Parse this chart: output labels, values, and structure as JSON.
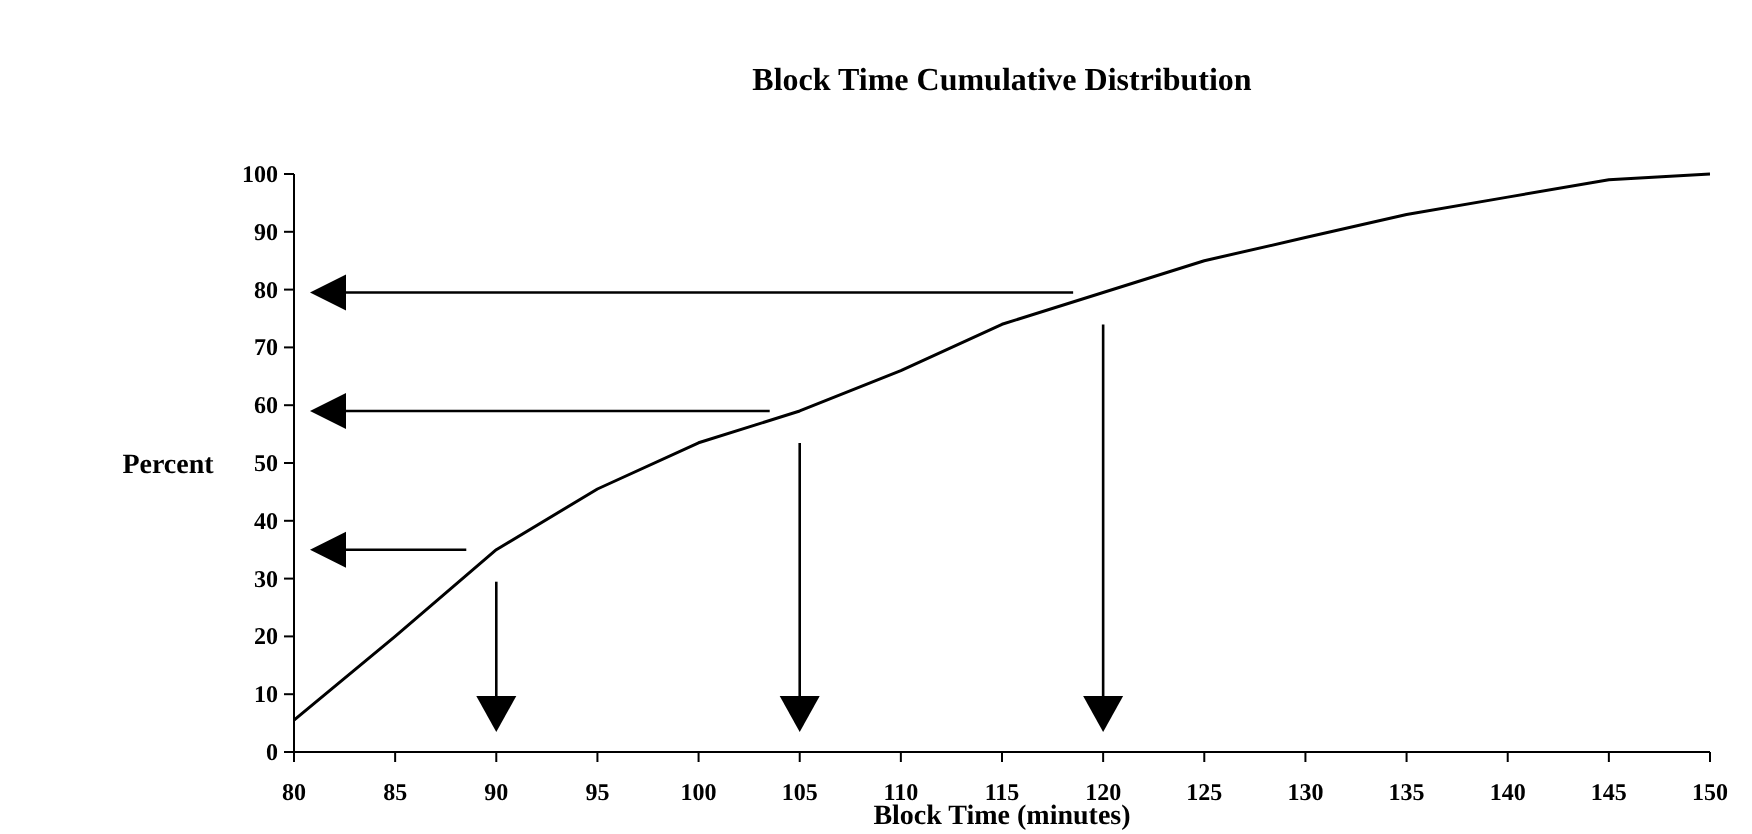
{
  "chart_data": {
    "type": "line",
    "title": "Block Time Cumulative Distribution",
    "xlabel": "Block Time (minutes)",
    "ylabel": "Percent",
    "x": [
      80,
      85,
      90,
      95,
      100,
      105,
      110,
      115,
      120,
      125,
      130,
      135,
      140,
      145,
      150
    ],
    "series": [
      {
        "color": "#000000",
        "values": [
          5.5,
          20,
          35,
          45.5,
          53.5,
          59,
          66,
          74,
          79.5,
          85,
          89,
          93,
          96,
          99,
          100
        ]
      }
    ],
    "xlim": [
      80,
      150
    ],
    "xticks": [
      80,
      85,
      90,
      95,
      100,
      105,
      110,
      115,
      120,
      125,
      130,
      135,
      140,
      145,
      150
    ],
    "ylim": [
      0,
      100
    ],
    "yticks": [
      0,
      10,
      20,
      30,
      40,
      50,
      60,
      70,
      80,
      90,
      100
    ],
    "grid": false,
    "marker": "none",
    "line_style": "solid"
  }
}
